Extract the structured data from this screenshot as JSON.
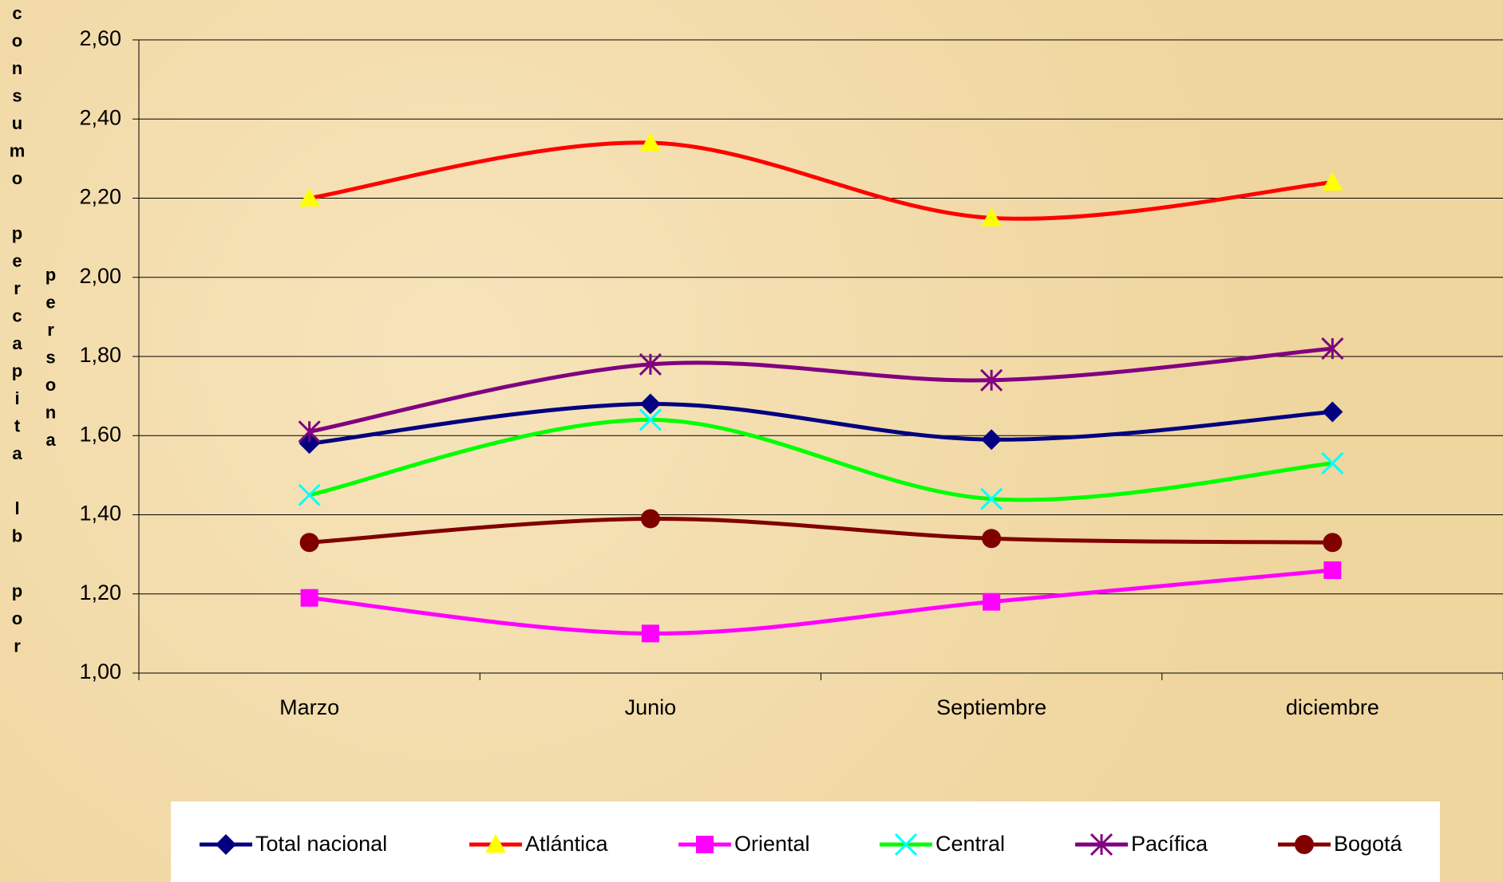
{
  "chart_data": {
    "type": "line",
    "smooth": true,
    "y_label": [
      "consumo percapita lb por",
      "persona"
    ],
    "categories": [
      "Marzo",
      "Junio",
      "Septiembre",
      "diciembre"
    ],
    "series": [
      {
        "name": "Total nacional",
        "color": "#000080",
        "marker": "diamond",
        "marker_color": "#000080",
        "values": [
          1.58,
          1.68,
          1.59,
          1.66
        ]
      },
      {
        "name": "Atlántica",
        "color": "#ff0000",
        "marker": "triangle",
        "marker_color": "#ffff00",
        "values": [
          2.2,
          2.34,
          2.15,
          2.24
        ]
      },
      {
        "name": "Oriental",
        "color": "#ff00ff",
        "marker": "square",
        "marker_color": "#ff00ff",
        "values": [
          1.19,
          1.1,
          1.18,
          1.26
        ]
      },
      {
        "name": "Central",
        "color": "#00ff00",
        "marker": "x",
        "marker_color": "#00ffff",
        "values": [
          1.45,
          1.64,
          1.44,
          1.53
        ]
      },
      {
        "name": "Pacífica",
        "color": "#800080",
        "marker": "star",
        "marker_color": "#800080",
        "values": [
          1.61,
          1.78,
          1.74,
          1.82
        ]
      },
      {
        "name": "Bogotá",
        "color": "#800000",
        "marker": "circle",
        "marker_color": "#800000",
        "values": [
          1.33,
          1.39,
          1.34,
          1.33
        ]
      }
    ],
    "ylim": [
      1.0,
      2.6
    ],
    "yticks": [
      {
        "value": 1.0,
        "label": "1,00"
      },
      {
        "value": 1.2,
        "label": "1,20"
      },
      {
        "value": 1.4,
        "label": "1,40"
      },
      {
        "value": 1.6,
        "label": "1,60"
      },
      {
        "value": 1.8,
        "label": "1,80"
      },
      {
        "value": 2.0,
        "label": "2,00"
      },
      {
        "value": 2.2,
        "label": "2,20"
      },
      {
        "value": 2.4,
        "label": "2,40"
      },
      {
        "value": 2.6,
        "label": "2,60"
      }
    ],
    "grid": true,
    "legend": "bottom"
  }
}
